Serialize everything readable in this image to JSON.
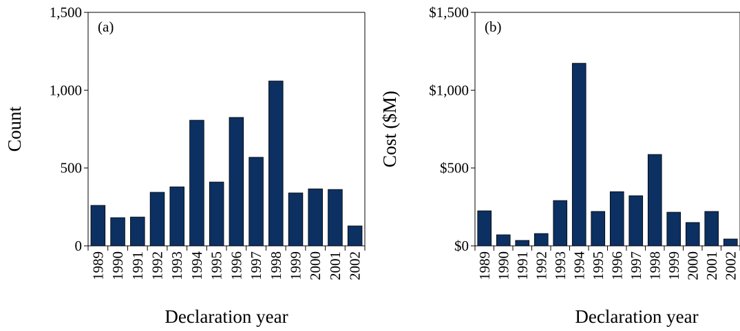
{
  "chart_data": [
    {
      "type": "bar",
      "annotation": "(a)",
      "ylabel": "Count",
      "xlabel": "Declaration year",
      "categories": [
        "1989",
        "1990",
        "1991",
        "1992",
        "1993",
        "1994",
        "1995",
        "1996",
        "1997",
        "1998",
        "1999",
        "2000",
        "2001",
        "2002"
      ],
      "values": [
        260,
        181,
        185,
        344,
        379,
        807,
        410,
        825,
        569,
        1059,
        340,
        366,
        362,
        128
      ],
      "color": "#0c3062",
      "ylim": [
        0,
        1500
      ],
      "yticks": [
        0,
        500,
        {
          "value": 1000,
          "label": "1,000"
        },
        {
          "value": 1500,
          "label": "1,500"
        }
      ]
    },
    {
      "type": "bar",
      "annotation": "(b)",
      "ylabel": "Cost ($M)",
      "xlabel": "Declaration year",
      "categories": [
        "1989",
        "1990",
        "1991",
        "1992",
        "1993",
        "1994",
        "1995",
        "1996",
        "1997",
        "1998",
        "1999",
        "2000",
        "2001",
        "2002"
      ],
      "values": [
        225,
        71,
        35,
        79,
        291,
        1173,
        221,
        348,
        322,
        587,
        216,
        150,
        221,
        44
      ],
      "color": "#0c3062",
      "ylim": [
        0,
        1500
      ],
      "yticks": [
        {
          "value": 0,
          "label": "$0"
        },
        {
          "value": 500,
          "label": "$500"
        },
        {
          "value": 1000,
          "label": "$1,000"
        },
        {
          "value": 1500,
          "label": "$1,500"
        }
      ]
    }
  ]
}
